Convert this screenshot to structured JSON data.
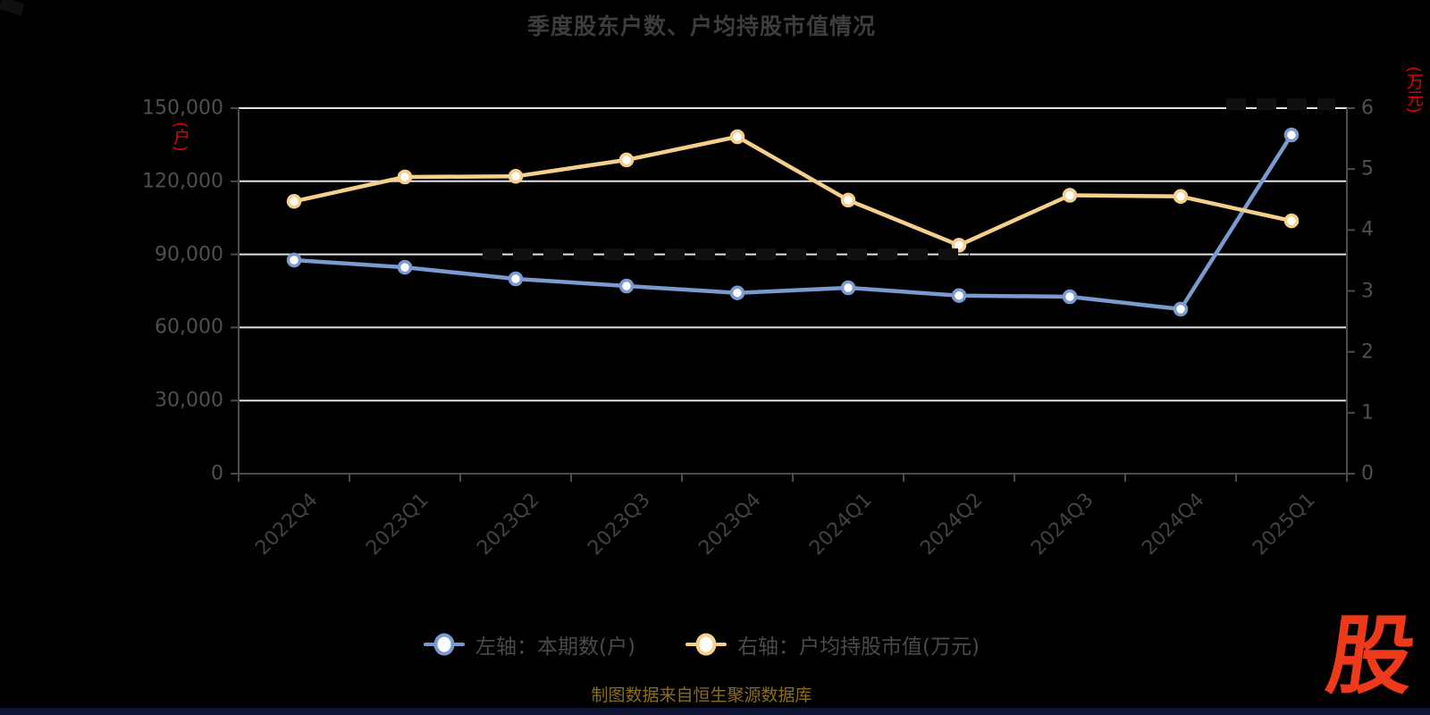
{
  "title": "季度股东户数、户均持股市值情况",
  "left_axis": {
    "name": "(户)",
    "ticks": [
      "150,000",
      "120,000",
      "90,000",
      "60,000",
      "30,000",
      "0"
    ]
  },
  "right_axis": {
    "name": "(万元)",
    "ticks": [
      "6",
      "5",
      "4",
      "3",
      "2",
      "1",
      "0"
    ]
  },
  "chart_data": {
    "type": "line",
    "title": "季度股东户数、户均持股市值情况",
    "categories": [
      "2022Q4",
      "2023Q1",
      "2023Q2",
      "2023Q3",
      "2023Q4",
      "2024Q1",
      "2024Q2",
      "2024Q3",
      "2024Q4",
      "2025Q1"
    ],
    "series": [
      {
        "name": "左轴：本期数(户)",
        "axis": "left",
        "color": "#7a9ad0",
        "values": [
          87650,
          84700,
          79950,
          77000,
          74200,
          76300,
          73100,
          72600,
          67500,
          139000
        ]
      },
      {
        "name": "右轴：户均持股市值(万元)",
        "axis": "right",
        "color": "#f6cf8b",
        "values": [
          4.47,
          4.87,
          4.88,
          5.15,
          5.53,
          4.49,
          3.75,
          4.57,
          4.55,
          4.15
        ]
      }
    ],
    "ylim_left": [
      0,
      150000
    ],
    "ylim_right": [
      0,
      6
    ],
    "xlabel": "",
    "ylabel_left": "(户)",
    "ylabel_right": "(万元)",
    "grid": true,
    "legend_position": "bottom"
  },
  "legend": {
    "items": [
      {
        "label": "左轴：本期数(户)",
        "color": "#7a9ad0"
      },
      {
        "label": "右轴：户均持股市值(万元)",
        "color": "#f6cf8b"
      }
    ]
  },
  "footer": {
    "source_text": "制图数据来自恒生聚源数据库",
    "logo_text": "股"
  },
  "colors": {
    "background": "#000000",
    "grid_line": "#e3e3e3",
    "axis_line": "#4c4c4c",
    "tick_text": "#4f4f4f",
    "title_text": "#3d3d3d",
    "axis_unit_text": "#e60000",
    "series_blue": "#7a9ad0",
    "series_yellow": "#f6cf8b",
    "source_text": "#8a6d1c",
    "logo_red": "#ee3a1a",
    "bottom_strip": "#0d1434"
  }
}
